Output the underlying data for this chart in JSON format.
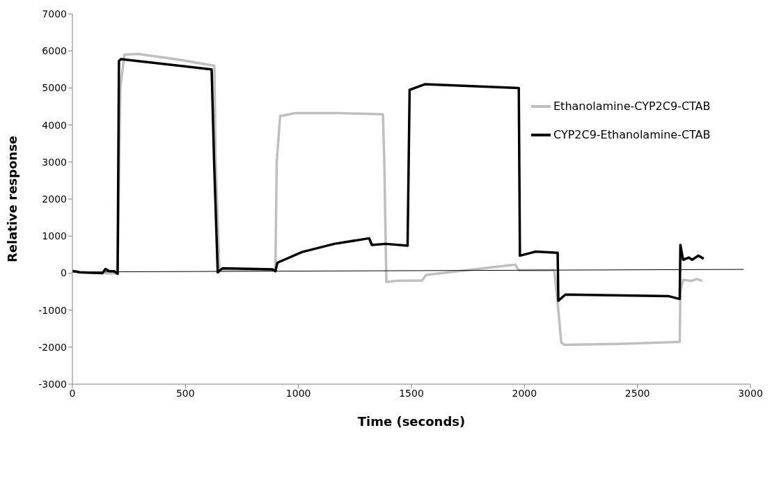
{
  "chart_data": {
    "type": "line",
    "xlabel": "Time (seconds)",
    "ylabel": "Relative response",
    "xlim": [
      0,
      3000
    ],
    "xticks": [
      0,
      500,
      1000,
      1500,
      2000,
      2500,
      3000
    ],
    "ylim": [
      -3000,
      7000
    ],
    "yticks": [
      -3000,
      -2000,
      -1000,
      0,
      1000,
      2000,
      3000,
      4000,
      5000,
      6000,
      7000
    ],
    "grid": false,
    "legend": "right",
    "marker": "none",
    "line_style": "solid",
    "series": [
      {
        "name": "Ethanolamine-CYP2C9-CTAB",
        "color": "#bfbfbf",
        "x": [
          0,
          33,
          133,
          200,
          212,
          230,
          291,
          476,
          628,
          634,
          650,
          880,
          898,
          904,
          919,
          986,
          1180,
          1374,
          1380,
          1389,
          1429,
          1547,
          1565,
          1959,
          1974,
          2132,
          2150,
          2163,
          2178,
          2436,
          2687,
          2690,
          2702,
          2739,
          2763,
          2787
        ],
        "values": [
          40,
          20,
          0,
          -10,
          5000,
          5900,
          5920,
          5760,
          5600,
          3000,
          100,
          90,
          60,
          3000,
          4240,
          4320,
          4320,
          4290,
          3000,
          -240,
          -210,
          -200,
          -50,
          230,
          80,
          80,
          -1000,
          -1880,
          -1940,
          -1910,
          -1860,
          -500,
          -180,
          -210,
          -160,
          -210
        ]
      },
      {
        "name": "CYP2C9-Ethanolamine-CTAB",
        "color": "#000000",
        "x": [
          0,
          33,
          133,
          146,
          164,
          185,
          200,
          206,
          215,
          616,
          627,
          643,
          664,
          886,
          898,
          907,
          1016,
          1159,
          1313,
          1325,
          1386,
          1483,
          1492,
          1559,
          1975,
          1980,
          2050,
          2147,
          2150,
          2181,
          2636,
          2687,
          2690,
          2702,
          2727,
          2742,
          2769,
          2793
        ],
        "values": [
          60,
          20,
          0,
          110,
          50,
          50,
          -20,
          5730,
          5780,
          5500,
          3000,
          20,
          130,
          100,
          50,
          280,
          570,
          790,
          940,
          760,
          790,
          740,
          4950,
          5100,
          5000,
          470,
          580,
          550,
          -750,
          -580,
          -620,
          -700,
          760,
          360,
          420,
          360,
          470,
          390
        ]
      },
      {
        "color": "#000000",
        "x": [
          0,
          2970
        ],
        "values": [
          30,
          100
        ]
      }
    ]
  }
}
